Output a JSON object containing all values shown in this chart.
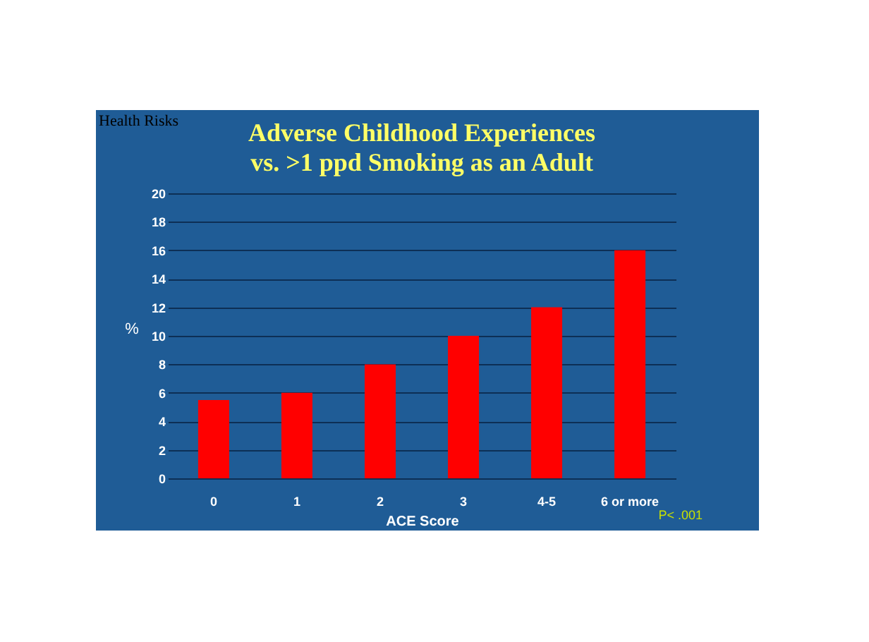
{
  "chart_data": {
    "type": "bar",
    "title": [
      "Adverse Childhood Experiences",
      "vs. >1 ppd Smoking as an Adult"
    ],
    "xlabel": "ACE Score",
    "ylabel": "%",
    "annotations": [
      "Health Risks",
      "P< .001"
    ],
    "categories": [
      "0",
      "1",
      "2",
      "3",
      "4-5",
      "6 or more"
    ],
    "values": [
      5.5,
      6,
      8,
      10,
      12,
      16
    ],
    "color": "#ff0000",
    "ylim": [
      0,
      20
    ],
    "yticks": [
      0,
      2,
      4,
      6,
      8,
      10,
      12,
      14,
      16,
      18,
      20
    ],
    "grid": "y"
  }
}
